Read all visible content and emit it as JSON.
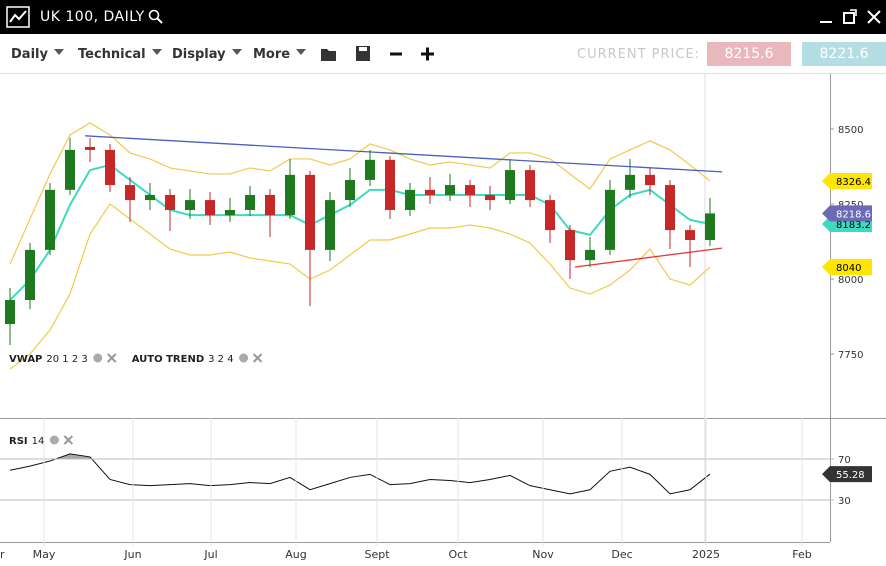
{
  "header": {
    "title": "UK 100, DAILY"
  },
  "toolbar": {
    "menus": [
      "Daily",
      "Technical",
      "Display",
      "More"
    ],
    "price_label": "CURRENT PRICE:",
    "sell": 8215.6,
    "buy": 8221.6
  },
  "chart_data": [
    {
      "type": "candlestick",
      "x": [
        0.5,
        1.5,
        2.5,
        3.5,
        4.5,
        5.5,
        6.5,
        7.5,
        8.5,
        9.5,
        10.5,
        11.5,
        12.5,
        13.5,
        14.5,
        15.5,
        16.5,
        17.5,
        18.5,
        19.5,
        20.5,
        21.5,
        22.5,
        23.5,
        24.5,
        25.5,
        26.5,
        27.5,
        28.5,
        29.5,
        30.5,
        31.5,
        32.5,
        33.5,
        34.5,
        35.5
      ],
      "ohlc": [
        [
          7850,
          7970,
          7780,
          7930
        ],
        [
          7930,
          8120,
          7900,
          8097
        ],
        [
          8097,
          8320,
          8080,
          8297
        ],
        [
          8297,
          8470,
          8280,
          8430
        ],
        [
          8440,
          8470,
          8390,
          8430
        ],
        [
          8430,
          8450,
          8290,
          8313
        ],
        [
          8313,
          8340,
          8190,
          8263
        ],
        [
          8263,
          8320,
          8230,
          8280
        ],
        [
          8280,
          8300,
          8160,
          8230
        ],
        [
          8230,
          8300,
          8200,
          8263
        ],
        [
          8263,
          8290,
          8180,
          8213
        ],
        [
          8213,
          8270,
          8190,
          8230
        ],
        [
          8230,
          8310,
          8210,
          8280
        ],
        [
          8280,
          8300,
          8140,
          8213
        ],
        [
          8213,
          8400,
          8200,
          8347
        ],
        [
          8347,
          8360,
          7910,
          8097
        ],
        [
          8097,
          8290,
          8060,
          8263
        ],
        [
          8263,
          8370,
          8240,
          8330
        ],
        [
          8330,
          8430,
          8310,
          8397
        ],
        [
          8397,
          8410,
          8200,
          8230
        ],
        [
          8230,
          8320,
          8210,
          8297
        ],
        [
          8297,
          8340,
          8250,
          8280
        ],
        [
          8280,
          8350,
          8260,
          8313
        ],
        [
          8313,
          8330,
          8240,
          8280
        ],
        [
          8280,
          8310,
          8230,
          8263
        ],
        [
          8263,
          8400,
          8250,
          8363
        ],
        [
          8363,
          8380,
          8240,
          8263
        ],
        [
          8263,
          8280,
          8120,
          8163
        ],
        [
          8163,
          8180,
          8000,
          8063
        ],
        [
          8063,
          8140,
          8040,
          8097
        ],
        [
          8097,
          8330,
          8080,
          8297
        ],
        [
          8297,
          8400,
          8270,
          8347
        ],
        [
          8347,
          8370,
          8280,
          8313
        ],
        [
          8313,
          8330,
          8100,
          8163
        ],
        [
          8163,
          8180,
          8040,
          8130
        ],
        [
          8130,
          8270,
          8110,
          8218.6
        ]
      ],
      "up_color": "#1f7a1f",
      "down_color": "#c62828",
      "badge_color": "#6b6bb5",
      "series": [
        {
          "color": "#f2c94c",
          "values": [
            8050,
            8200,
            8350,
            8480,
            8520,
            8480,
            8420,
            8400,
            8370,
            8360,
            8350,
            8350,
            8370,
            8360,
            8400,
            8400,
            8380,
            8400,
            8450,
            8430,
            8400,
            8380,
            8390,
            8380,
            8370,
            8420,
            8420,
            8400,
            8350,
            8300,
            8400,
            8430,
            8460,
            8430,
            8380,
            8326.4
          ]
        },
        {
          "color": "#f2c94c",
          "values": [
            7700,
            7750,
            7830,
            7950,
            8150,
            8250,
            8200,
            8150,
            8100,
            8080,
            8080,
            8090,
            8070,
            8060,
            8050,
            8000,
            8030,
            8080,
            8130,
            8130,
            8150,
            8170,
            8170,
            8180,
            8170,
            8150,
            8120,
            8050,
            7970,
            7950,
            7980,
            8030,
            8100,
            8000,
            7980,
            8040
          ]
        },
        {
          "color": "#3dd9c1",
          "values": [
            7930,
            7997,
            8097,
            8247,
            8363,
            8380,
            8330,
            8280,
            8230,
            8213,
            8213,
            8213,
            8213,
            8213,
            8213,
            8180,
            8213,
            8247,
            8297,
            8297,
            8280,
            8280,
            8280,
            8280,
            8280,
            8280,
            8280,
            8247,
            8163,
            8147,
            8230,
            8280,
            8297,
            8247,
            8197,
            8183.2
          ]
        }
      ],
      "lines": [
        {
          "color": "#4a5fc1",
          "x": [
            4.25,
            36.1
          ],
          "values": [
            8477,
            8357
          ]
        },
        {
          "color": "#e53935",
          "x": [
            28.75,
            36.1
          ],
          "values": [
            8040,
            8103
          ]
        }
      ],
      "indicators": [
        {
          "name": "VWAP",
          "params": "20 1 2 3"
        },
        {
          "name": "AUTO TREND",
          "params": "3 2 4"
        }
      ],
      "xlim": [
        0,
        41.5
      ],
      "ylim": [
        7537,
        8683
      ],
      "yticks": [
        8500,
        8250,
        8000,
        7750
      ]
    },
    {
      "type": "line",
      "indicator": {
        "name": "RSI",
        "params": "14"
      },
      "x": [
        0.5,
        1.5,
        2.5,
        3.5,
        4.5,
        5.5,
        6.5,
        7.5,
        8.5,
        9.5,
        10.5,
        11.5,
        12.5,
        13.5,
        14.5,
        15.5,
        16.5,
        17.5,
        18.5,
        19.5,
        20.5,
        21.5,
        22.5,
        23.5,
        24.5,
        25.5,
        26.5,
        27.5,
        28.5,
        29.5,
        30.5,
        31.5,
        32.5,
        33.5,
        34.5,
        35.5
      ],
      "values": [
        59,
        63,
        68,
        75,
        72,
        50,
        45,
        44,
        45,
        46,
        44,
        45,
        47,
        46,
        52,
        40,
        46,
        52,
        55,
        45,
        46,
        50,
        49,
        47,
        50,
        54,
        44,
        40,
        36,
        40,
        58,
        62,
        55,
        36,
        40,
        55.28
      ],
      "color": "#111111",
      "overbought": 70,
      "fill_color": "#a8a8a8",
      "xlim": [
        0,
        41.5
      ],
      "ylim": [
        -11,
        110
      ],
      "yticks": [
        70,
        30
      ],
      "xticks": [
        {
          "value": -0.25,
          "label": "Apr"
        },
        {
          "value": 2.2,
          "label": "May"
        },
        {
          "value": 6.65,
          "label": "Jun"
        },
        {
          "value": 10.55,
          "label": "Jul"
        },
        {
          "value": 14.8,
          "label": "Aug"
        },
        {
          "value": 18.85,
          "label": "Sept"
        },
        {
          "value": 22.9,
          "label": "Oct"
        },
        {
          "value": 27.15,
          "label": "Nov"
        },
        {
          "value": 31.1,
          "label": "Dec"
        },
        {
          "value": 35.3,
          "label": "2025"
        },
        {
          "value": 40.1,
          "label": "Feb"
        }
      ]
    }
  ]
}
